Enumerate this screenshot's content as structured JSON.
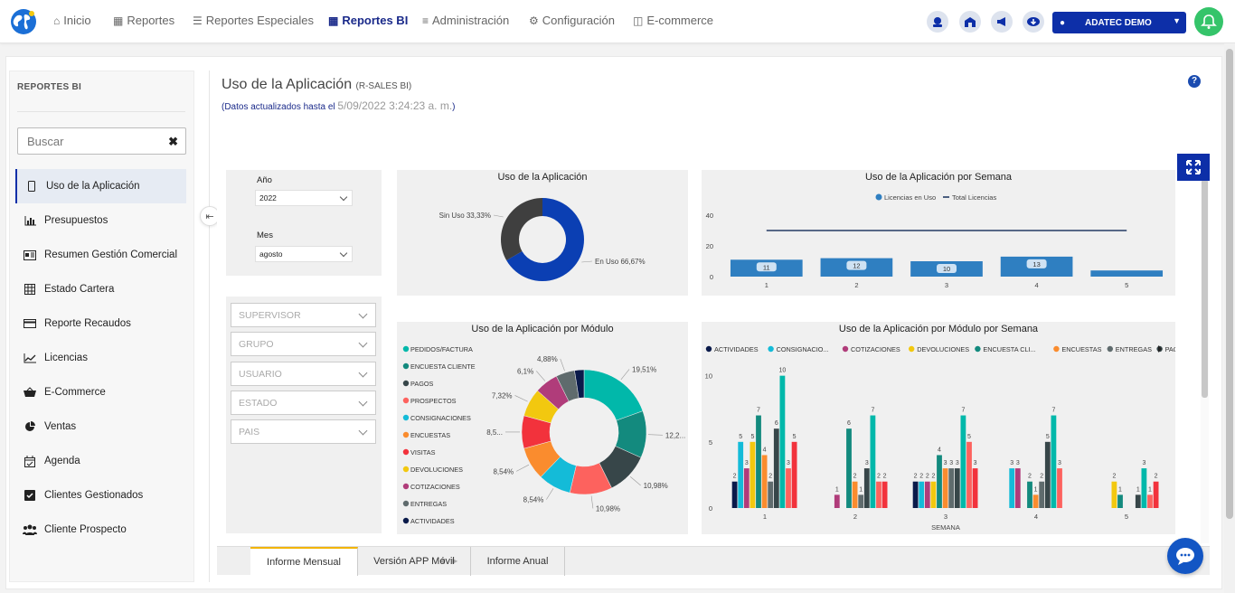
{
  "nav": {
    "items": [
      "Inicio",
      "Reportes",
      "Reportes Especiales",
      "Reportes BI",
      "Administración",
      "Configuración",
      "E-commerce"
    ],
    "active_index": 3,
    "user_label": "ADATEC DEMO"
  },
  "sidebar": {
    "title": "REPORTES BI",
    "search_placeholder": "Buscar",
    "items": [
      {
        "label": "Uso de la Aplicación",
        "icon": "mobile-icon"
      },
      {
        "label": "Presupuestos",
        "icon": "bar-chart-icon"
      },
      {
        "label": "Resumen Gestión Comercial",
        "icon": "id-card-icon"
      },
      {
        "label": "Estado Cartera",
        "icon": "table-icon"
      },
      {
        "label": "Reporte Recaudos",
        "icon": "credit-card-icon"
      },
      {
        "label": "Licencias",
        "icon": "line-chart-icon"
      },
      {
        "label": "E-Commerce",
        "icon": "basket-icon"
      },
      {
        "label": "Ventas",
        "icon": "pie-chart-icon"
      },
      {
        "label": "Agenda",
        "icon": "calendar-check-icon"
      },
      {
        "label": "Clientes Gestionados",
        "icon": "checkbox-icon"
      },
      {
        "label": "Cliente Prospecto",
        "icon": "users-icon"
      }
    ],
    "active_index": 0
  },
  "page": {
    "title": "Uso de la Aplicación",
    "title_suffix": "(R-SALES BI)",
    "updated_label": "(Datos actualizados hasta el",
    "updated_value": "5/09/2022 3:24:23 a. m.",
    "updated_close": ")"
  },
  "filters": {
    "year_label": "Año",
    "year_value": "2022",
    "month_label": "Mes",
    "month_value": "agosto",
    "slicers": [
      "SUPERVISOR",
      "GRUPO",
      "USUARIO",
      "ESTADO",
      "PAIS"
    ]
  },
  "tabs": [
    "Informe Mensual",
    "Versión APP Móvil",
    "Informe Anual"
  ],
  "active_tab": 0,
  "colors": {
    "primary": "#0d2fa8",
    "bar": "#2f7fc1",
    "green": "#35c46a"
  },
  "chart_data": [
    {
      "type": "pie",
      "title": "Uso de la Aplicación",
      "categories": [
        "En Uso",
        "Sin Uso"
      ],
      "values": [
        66.67,
        33.33
      ],
      "labels": [
        "En Uso 66,67%",
        "Sin Uso 33,33%"
      ],
      "colors": [
        "#0b3fb3",
        "#3f3f3f"
      ]
    },
    {
      "type": "bar",
      "title": "Uso de la Aplicación por Semana",
      "legend": [
        "Licencias en Uso",
        "Total Licencias"
      ],
      "categories": [
        "1",
        "2",
        "3",
        "4",
        "5"
      ],
      "series": [
        {
          "name": "Licencias en Uso",
          "values": [
            11,
            12,
            10,
            13,
            4
          ]
        },
        {
          "name": "Total Licencias",
          "values": [
            30,
            30,
            30,
            30,
            30
          ]
        }
      ],
      "data_labels": [
        "11",
        "12",
        "10",
        "13"
      ],
      "yticks": [
        "0",
        "20",
        "40"
      ],
      "ylim": [
        0,
        40
      ]
    },
    {
      "type": "pie",
      "title": "Uso de la Aplicación por Módulo",
      "legend": [
        "PEDIDOS/FACTURA",
        "ENCUESTA CLIENTE",
        "PAGOS",
        "PROSPECTOS",
        "CONSIGNACIONES",
        "ENCUESTAS",
        "VISITAS",
        "DEVOLUCIONES",
        "COTIZACIONES",
        "ENTREGAS",
        "ACTIVIDADES"
      ],
      "values": [
        19.51,
        12.2,
        10.98,
        10.98,
        8.54,
        8.54,
        8.5,
        7.32,
        6.1,
        4.88,
        2.44
      ],
      "labels": [
        "19,51%",
        "12,2...",
        "10,98%",
        "10,98%",
        "8,54%",
        "8,54%",
        "8,5...",
        "7,32%",
        "6,1%",
        "4,88%",
        ""
      ],
      "colors": [
        "#01b8aa",
        "#138a7e",
        "#374649",
        "#fd625e",
        "#14bbd8",
        "#fa8c2e",
        "#f2323c",
        "#f2c80f",
        "#b03c7a",
        "#5f6b6d",
        "#0a1a4a"
      ]
    },
    {
      "type": "bar",
      "title": "Uso de la Aplicación por Módulo por Semana",
      "xlabel": "SEMANA",
      "categories": [
        "1",
        "2",
        "3",
        "4",
        "5"
      ],
      "yticks": [
        "0",
        "5",
        "10"
      ],
      "ylim": [
        0,
        11
      ],
      "legend": [
        "ACTIVIDADES",
        "CONSIGNACIO...",
        "COTIZACIONES",
        "DEVOLUCIONES",
        "ENCUESTA CLI...",
        "ENCUESTAS",
        "ENTREGAS",
        "PAGOS"
      ],
      "series": [
        {
          "name": "ACTIVIDADES",
          "color": "#0a1a4a",
          "values": [
            2,
            0,
            2,
            0,
            0
          ]
        },
        {
          "name": "CONSIGNACIONES",
          "color": "#14bbd8",
          "values": [
            5,
            0,
            2,
            3,
            0
          ]
        },
        {
          "name": "COTIZACIONES",
          "color": "#b03c7a",
          "values": [
            3,
            1,
            2,
            3,
            0
          ]
        },
        {
          "name": "DEVOLUCIONES",
          "color": "#f2c80f",
          "values": [
            5,
            0,
            2,
            0,
            2
          ]
        },
        {
          "name": "ENCUESTA CLIENTE",
          "color": "#138a7e",
          "values": [
            7,
            6,
            4,
            2,
            1
          ]
        },
        {
          "name": "ENCUESTAS",
          "color": "#fa8c2e",
          "values": [
            4,
            2,
            3,
            1,
            0
          ]
        },
        {
          "name": "ENTREGAS",
          "color": "#5f6b6d",
          "values": [
            2,
            1,
            3,
            2,
            0
          ]
        },
        {
          "name": "PAGOS",
          "color": "#374649",
          "values": [
            6,
            3,
            3,
            5,
            1
          ]
        },
        {
          "name": "PEDIDOS/FACTURA",
          "color": "#01b8aa",
          "values": [
            10,
            7,
            7,
            7,
            3
          ]
        },
        {
          "name": "PROSPECTOS",
          "color": "#fd625e",
          "values": [
            3,
            2,
            5,
            3,
            1
          ]
        },
        {
          "name": "VISITAS",
          "color": "#f2323c",
          "values": [
            5,
            2,
            3,
            0,
            2
          ]
        }
      ]
    }
  ]
}
